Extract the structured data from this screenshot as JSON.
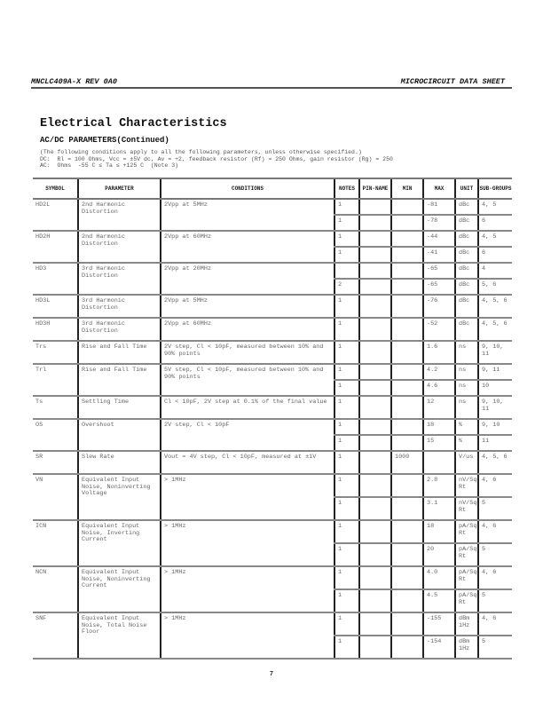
{
  "header": {
    "left": "MNCLC409A-X REV 0A0",
    "right": "MICROCIRCUIT DATA SHEET"
  },
  "title": "Electrical Characteristics",
  "subtitle": "AC/DC PARAMETERS(Continued)",
  "conditions": [
    "(The following conditions apply to all the following parameters, unless otherwise specified.)",
    "DC:  Rl = 100 Ohms, Vcc = ±5V dc, Av = +2, feedback resistor (Rf) = 250 Ohms, gain resistor (Rg) = 250",
    "AC:  Ohms  -55 C ≤ Ta ≤ +125 C  (Note 3)"
  ],
  "columns": [
    "SYMBOL",
    "PARAMETER",
    "CONDITIONS",
    "NOTES",
    "PIN-NAME",
    "MIN",
    "MAX",
    "UNIT",
    "SUB-GROUPS"
  ],
  "rows": [
    {
      "symbol": "HD2L",
      "parameter": "2nd Harmonic Distortion",
      "conditions": "2Vpp at 5MHz",
      "sub": [
        {
          "notes": "1",
          "pin": "",
          "min": "",
          "max": "-81",
          "unit": "dBc",
          "subgroups": "4, 5"
        },
        {
          "notes": "1",
          "pin": "",
          "min": "",
          "max": "-78",
          "unit": "dBc",
          "subgroups": "6"
        }
      ]
    },
    {
      "symbol": "HD2H",
      "parameter": "2nd Harmonic Distortion",
      "conditions": "2Vpp at 60MHz",
      "sub": [
        {
          "notes": "1",
          "pin": "",
          "min": "",
          "max": "-44",
          "unit": "dBc",
          "subgroups": "4, 5"
        },
        {
          "notes": "1",
          "pin": "",
          "min": "",
          "max": "-41",
          "unit": "dBc",
          "subgroups": "6"
        }
      ]
    },
    {
      "symbol": "HD3",
      "parameter": "3rd Harmonic Distortion",
      "conditions": "2Vpp at 20MHz",
      "sub": [
        {
          "notes": "",
          "pin": "",
          "min": "",
          "max": "-65",
          "unit": "dBc",
          "subgroups": "4"
        },
        {
          "notes": "2",
          "pin": "",
          "min": "",
          "max": "-65",
          "unit": "dBc",
          "subgroups": "5, 6"
        }
      ]
    },
    {
      "symbol": "HD3L",
      "parameter": "3rd Harmonic Distortion",
      "conditions": "2Vpp at 5MHz",
      "sub": [
        {
          "notes": "1",
          "pin": "",
          "min": "",
          "max": "-76",
          "unit": "dBc",
          "subgroups": "4, 5, 6"
        }
      ]
    },
    {
      "symbol": "HD3H",
      "parameter": "3rd Harmonic Distortion",
      "conditions": "2Vpp at 60MHz",
      "sub": [
        {
          "notes": "1",
          "pin": "",
          "min": "",
          "max": "-52",
          "unit": "dBc",
          "subgroups": "4, 5, 6"
        }
      ]
    },
    {
      "symbol": "Trs",
      "parameter": "Rise and Fall Time",
      "conditions": "2V step, Cl < 10pF, measured between 10% and 90% points",
      "sub": [
        {
          "notes": "1",
          "pin": "",
          "min": "",
          "max": "1.6",
          "unit": "ns",
          "subgroups": "9, 10, 11"
        }
      ]
    },
    {
      "symbol": "Trl",
      "parameter": "Rise and Fall Time",
      "conditions": "5V step, Cl < 10pF, measured between 10% and 90% points",
      "sub": [
        {
          "notes": "1",
          "pin": "",
          "min": "",
          "max": "4.2",
          "unit": "ns",
          "subgroups": "9, 11"
        },
        {
          "notes": "1",
          "pin": "",
          "min": "",
          "max": "4.6",
          "unit": "ns",
          "subgroups": "10"
        }
      ]
    },
    {
      "symbol": "Ts",
      "parameter": "Settling Time",
      "conditions": "Cl < 10pF, 2V step at 0.1% of the final value",
      "sub": [
        {
          "notes": "1",
          "pin": "",
          "min": "",
          "max": "12",
          "unit": "ns",
          "subgroups": "9, 10, 11"
        }
      ]
    },
    {
      "symbol": "OS",
      "parameter": "Overshoot",
      "conditions": "2V step, Cl < 10pF",
      "sub": [
        {
          "notes": "1",
          "pin": "",
          "min": "",
          "max": "18",
          "unit": "%",
          "subgroups": "9, 10"
        },
        {
          "notes": "1",
          "pin": "",
          "min": "",
          "max": "15",
          "unit": "%",
          "subgroups": "11"
        }
      ]
    },
    {
      "symbol": "SR",
      "parameter": "Slew Rate",
      "conditions": "Vout = 4V step, Cl < 10pF, measured at ±1V",
      "sub": [
        {
          "notes": "1",
          "pin": "",
          "min": "1000",
          "max": "",
          "unit": "V/us",
          "subgroups": "4, 5, 6"
        }
      ]
    },
    {
      "symbol": "VN",
      "parameter": "Equivalent Input Noise, Noninverting Voltage",
      "conditions": "> 1MHz",
      "sub": [
        {
          "notes": "1",
          "pin": "",
          "min": "",
          "max": "2.8",
          "unit": "nV/Sq Rt",
          "subgroups": "4, 6"
        },
        {
          "notes": "1",
          "pin": "",
          "min": "",
          "max": "3.1",
          "unit": "nV/Sq Rt",
          "subgroups": "5"
        }
      ]
    },
    {
      "symbol": "ICN",
      "parameter": "Equivalent Input Noise, Inverting Current",
      "conditions": "> 1MHz",
      "sub": [
        {
          "notes": "1",
          "pin": "",
          "min": "",
          "max": "18",
          "unit": "pA/Sq Rt",
          "subgroups": "4, 6"
        },
        {
          "notes": "1",
          "pin": "",
          "min": "",
          "max": "20",
          "unit": "pA/Sq Rt",
          "subgroups": "5"
        }
      ]
    },
    {
      "symbol": "NCN",
      "parameter": "Equivalent Input Noise, Noninverting Current",
      "conditions": "> 1MHz",
      "sub": [
        {
          "notes": "1",
          "pin": "",
          "min": "",
          "max": "4.0",
          "unit": "pA/Sq Rt",
          "subgroups": "4, 6"
        },
        {
          "notes": "1",
          "pin": "",
          "min": "",
          "max": "4.5",
          "unit": "pA/Sq Rt",
          "subgroups": "5"
        }
      ]
    },
    {
      "symbol": "SNF",
      "parameter": "Equivalent Input Noise, Total Noise Floor",
      "conditions": "> 1MHz",
      "sub": [
        {
          "notes": "1",
          "pin": "",
          "min": "",
          "max": "-155",
          "unit": "dBm 1Hz",
          "subgroups": "4, 6"
        },
        {
          "notes": "1",
          "pin": "",
          "min": "",
          "max": "-154",
          "unit": "dBm 1Hz",
          "subgroups": "5"
        }
      ]
    }
  ],
  "page_number": "7"
}
